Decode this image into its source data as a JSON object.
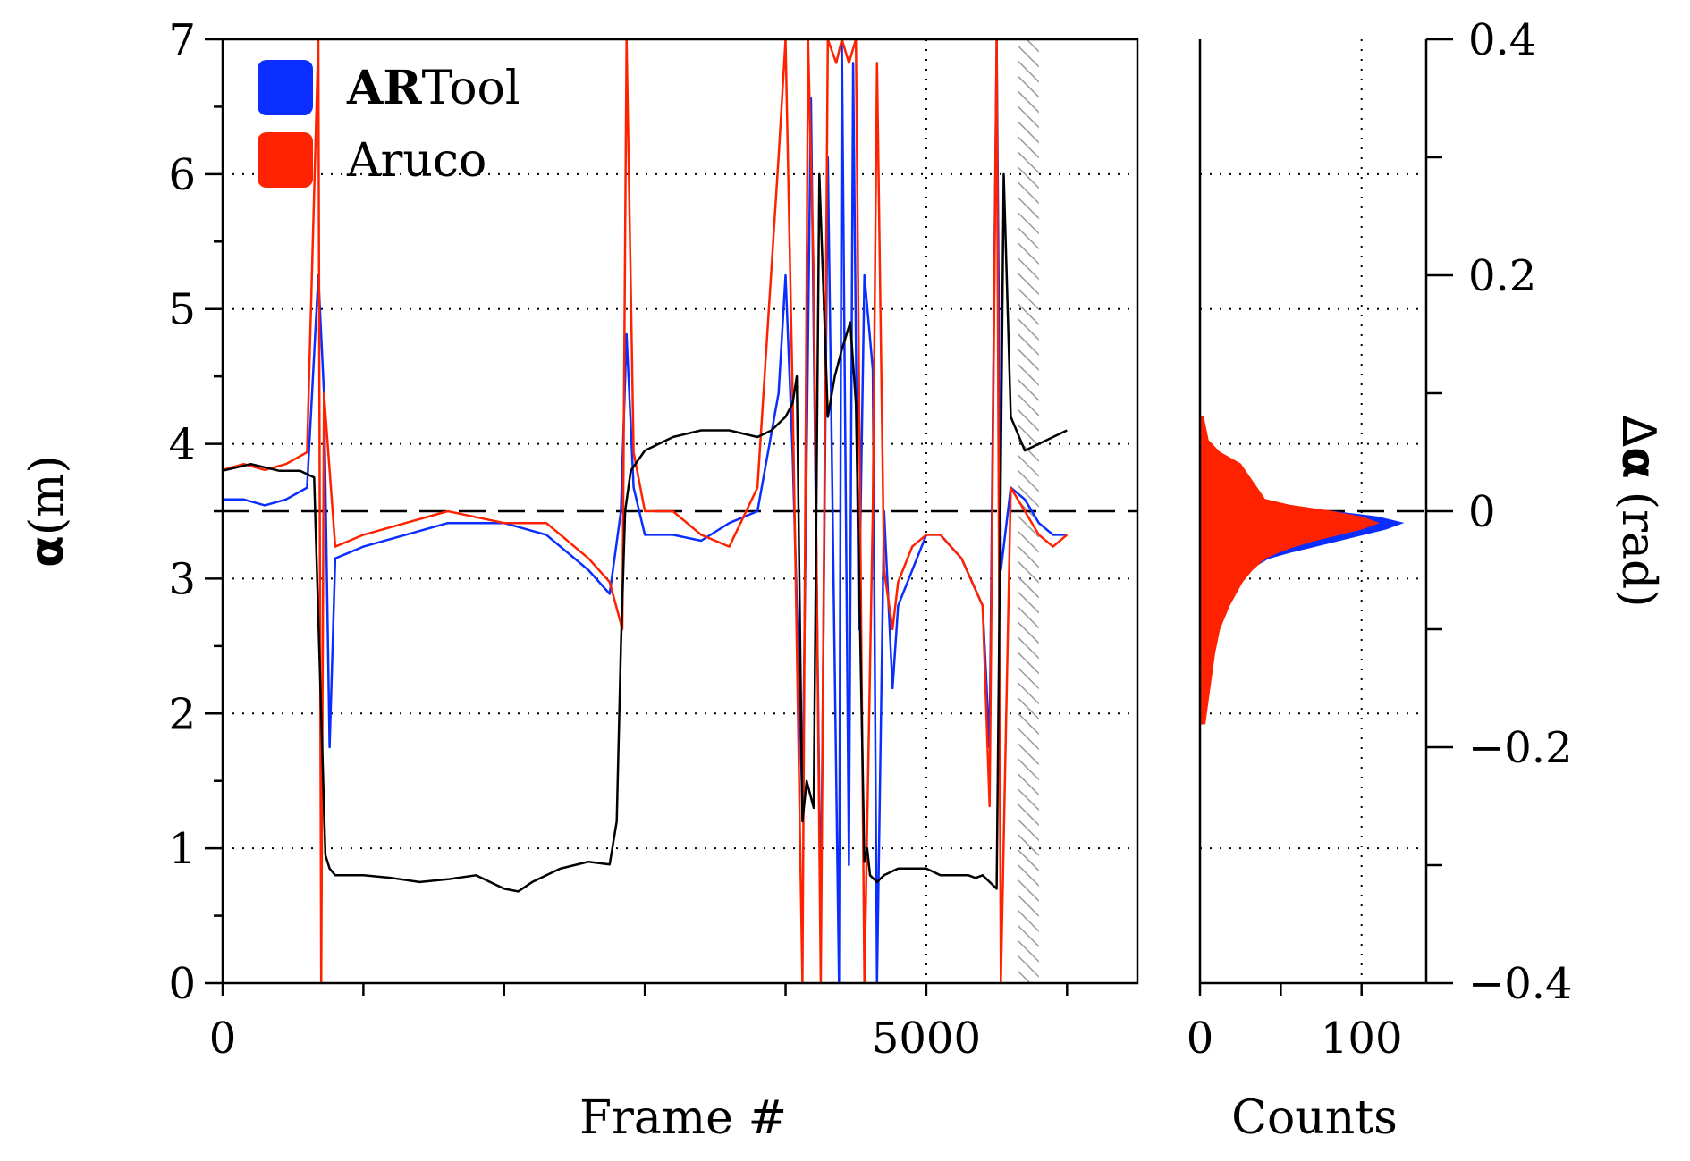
{
  "chart_data": [
    {
      "type": "line",
      "panel": "main",
      "xlabel": "Frame #",
      "ylabel_symbol": "α",
      "ylabel_unit": "(m)",
      "y2label_prefix": "Δ",
      "y2label_symbol": "α",
      "y2label_unit": "(rad)",
      "xlim": [
        0,
        6500
      ],
      "ylim": [
        0,
        7
      ],
      "y2lim": [
        -0.4,
        0.4
      ],
      "xticks": [
        0,
        1000,
        2000,
        3000,
        4000,
        5000,
        6000
      ],
      "xticklabels": [
        "0",
        "5000"
      ],
      "xticklabel_values": [
        0,
        5000
      ],
      "yticks": [
        0,
        1,
        2,
        3,
        4,
        5,
        6,
        7
      ],
      "yticklabels": [
        "0",
        "1",
        "2",
        "3",
        "4",
        "5",
        "6",
        "7"
      ],
      "y2ticks": [
        -0.4,
        -0.2,
        0,
        0.2,
        0.4
      ],
      "y2ticklabels": [
        "−0.4",
        "−0.2",
        "0",
        "0.2",
        "0.4"
      ],
      "grid": "dotted horizontal at y = 1, 2, 3, 4, 5, 6; dotted vertical at x = 5000",
      "reference_line": {
        "axis": "y2",
        "value": 0,
        "style": "dashed"
      },
      "shaded_region": {
        "x": [
          5650,
          5800
        ],
        "style": "hatched"
      },
      "legend": {
        "placement": "top-left",
        "entries": [
          {
            "bold": "AR",
            "rest": "Tool",
            "color": "#0a2eff"
          },
          {
            "bold": "",
            "rest": "Aruco",
            "color": "#ff2200"
          }
        ]
      },
      "series": [
        {
          "legend_index": 0,
          "axis": "y2",
          "color": "#0a2eff",
          "x": [
            0,
            150,
            300,
            450,
            600,
            680,
            720,
            760,
            800,
            1000,
            1300,
            1600,
            2000,
            2300,
            2600,
            2750,
            2830,
            2870,
            2920,
            3000,
            3200,
            3400,
            3600,
            3800,
            3950,
            4000,
            4050,
            4120,
            4180,
            4250,
            4300,
            4380,
            4400,
            4450,
            4480,
            4520,
            4560,
            4620,
            4650,
            4700,
            4760,
            4800,
            4900,
            5000,
            5100,
            5250,
            5400,
            5450,
            5500,
            5530,
            5600,
            5700,
            5800,
            5900,
            6000
          ],
          "y": [
            0.01,
            0.01,
            0.005,
            0.01,
            0.02,
            0.2,
            0.1,
            -0.2,
            -0.04,
            -0.03,
            -0.02,
            -0.01,
            -0.01,
            -0.02,
            -0.05,
            -0.07,
            0.0,
            0.15,
            0.02,
            -0.02,
            -0.02,
            -0.025,
            -0.01,
            0.0,
            0.1,
            0.2,
            0.05,
            -0.25,
            0.35,
            -0.35,
            0.3,
            -0.4,
            0.4,
            -0.3,
            0.38,
            -0.1,
            0.2,
            0.12,
            -0.4,
            0.0,
            -0.15,
            -0.08,
            -0.05,
            -0.02,
            -0.02,
            -0.04,
            -0.08,
            -0.2,
            0.4,
            -0.05,
            0.02,
            0.01,
            -0.01,
            -0.02,
            -0.02
          ]
        },
        {
          "legend_index": 1,
          "axis": "y2",
          "color": "#ff2200",
          "x": [
            0,
            150,
            300,
            450,
            600,
            680,
            700,
            720,
            800,
            1000,
            1300,
            1600,
            2000,
            2300,
            2600,
            2750,
            2840,
            2870,
            2920,
            3000,
            3200,
            3400,
            3600,
            3800,
            3950,
            4000,
            4050,
            4120,
            4160,
            4200,
            4250,
            4300,
            4360,
            4400,
            4450,
            4500,
            4560,
            4620,
            4650,
            4700,
            4760,
            4800,
            4900,
            5000,
            5100,
            5250,
            5400,
            5450,
            5500,
            5530,
            5600,
            5700,
            5800,
            5900,
            6000
          ],
          "y": [
            0.035,
            0.04,
            0.035,
            0.04,
            0.05,
            0.4,
            -0.4,
            0.1,
            -0.03,
            -0.02,
            -0.01,
            0.0,
            -0.01,
            -0.01,
            -0.04,
            -0.06,
            -0.1,
            0.4,
            0.05,
            0.0,
            0.0,
            -0.02,
            -0.03,
            0.02,
            0.3,
            0.4,
            0.1,
            -0.4,
            0.4,
            0.2,
            -0.4,
            0.4,
            0.38,
            0.4,
            0.38,
            0.4,
            -0.4,
            0.0,
            0.38,
            -0.05,
            -0.1,
            -0.06,
            -0.03,
            -0.02,
            -0.02,
            -0.04,
            -0.08,
            -0.25,
            0.4,
            -0.4,
            0.02,
            0.0,
            -0.02,
            -0.03,
            -0.02
          ]
        },
        {
          "axis": "y",
          "color": "#000000",
          "x": [
            0,
            200,
            400,
            550,
            650,
            700,
            730,
            760,
            800,
            1000,
            1200,
            1400,
            1600,
            1800,
            2000,
            2100,
            2200,
            2400,
            2600,
            2750,
            2800,
            2830,
            2860,
            2900,
            3000,
            3200,
            3400,
            3600,
            3800,
            3900,
            4000,
            4050,
            4080,
            4120,
            4150,
            4200,
            4240,
            4300,
            4350,
            4400,
            4460,
            4500,
            4560,
            4580,
            4600,
            4650,
            4700,
            4800,
            4900,
            5000,
            5100,
            5200,
            5300,
            5350,
            5400,
            5500,
            5550,
            5600,
            5700,
            5800,
            5900,
            6000
          ],
          "y": [
            3.8,
            3.85,
            3.8,
            3.8,
            3.75,
            2.0,
            0.95,
            0.85,
            0.8,
            0.8,
            0.78,
            0.75,
            0.77,
            0.8,
            0.7,
            0.68,
            0.75,
            0.85,
            0.9,
            0.88,
            1.2,
            2.5,
            3.5,
            3.8,
            3.95,
            4.05,
            4.1,
            4.1,
            4.05,
            4.1,
            4.2,
            4.3,
            4.5,
            1.2,
            1.5,
            1.3,
            6.0,
            4.2,
            4.5,
            4.7,
            4.9,
            4.3,
            0.9,
            1.0,
            0.8,
            0.75,
            0.8,
            0.85,
            0.85,
            0.85,
            0.8,
            0.8,
            0.8,
            0.78,
            0.8,
            0.7,
            6.0,
            4.2,
            3.95,
            4.0,
            4.05,
            4.1
          ]
        }
      ]
    },
    {
      "type": "histogram",
      "panel": "side",
      "orientation": "horizontal",
      "xlabel": "Counts",
      "xlim": [
        0,
        140
      ],
      "xticks": [
        0,
        50,
        100
      ],
      "xticklabels": [
        "0",
        "100"
      ],
      "xticklabel_values": [
        0,
        100
      ],
      "ylim": [
        -0.4,
        0.4
      ],
      "grid": "dotted vertical at 100",
      "series": [
        {
          "legend_index": 0,
          "color": "#0a2eff",
          "bin_centers": [
            -0.18,
            -0.15,
            -0.12,
            -0.1,
            -0.08,
            -0.06,
            -0.05,
            -0.04,
            -0.035,
            -0.03,
            -0.025,
            -0.02,
            -0.015,
            -0.01,
            -0.005,
            0.0,
            0.005,
            0.01,
            0.02,
            0.03,
            0.04,
            0.06,
            0.08
          ],
          "counts": [
            2,
            4,
            6,
            9,
            14,
            22,
            30,
            42,
            55,
            70,
            85,
            100,
            115,
            125,
            110,
            80,
            45,
            25,
            12,
            6,
            3,
            2,
            1
          ]
        },
        {
          "legend_index": 1,
          "color": "#ff2200",
          "bin_centers": [
            -0.18,
            -0.15,
            -0.12,
            -0.1,
            -0.08,
            -0.06,
            -0.05,
            -0.04,
            -0.035,
            -0.03,
            -0.025,
            -0.02,
            -0.015,
            -0.01,
            -0.005,
            0.0,
            0.005,
            0.01,
            0.02,
            0.03,
            0.04,
            0.05,
            0.06,
            0.08
          ],
          "counts": [
            3,
            6,
            9,
            12,
            18,
            26,
            32,
            40,
            48,
            58,
            70,
            85,
            100,
            110,
            100,
            80,
            55,
            40,
            35,
            30,
            25,
            12,
            5,
            2
          ]
        }
      ]
    }
  ]
}
